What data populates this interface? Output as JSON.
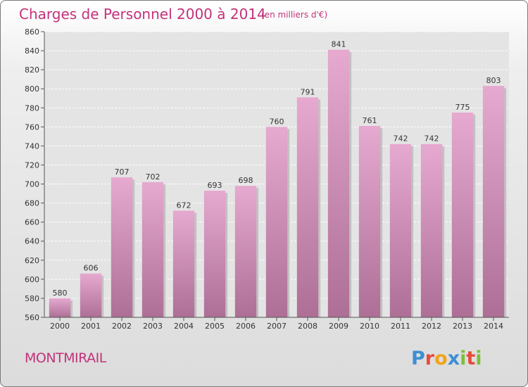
{
  "chart_data": {
    "type": "bar",
    "title": "Charges de Personnel 2000 à 2014",
    "subtitle": "(en milliers d'€)",
    "xlabel": "",
    "ylabel": "",
    "categories": [
      "2000",
      "2001",
      "2002",
      "2003",
      "2004",
      "2005",
      "2006",
      "2007",
      "2008",
      "2009",
      "2010",
      "2011",
      "2012",
      "2013",
      "2014"
    ],
    "values": [
      580,
      606,
      707,
      702,
      672,
      693,
      698,
      760,
      791,
      841,
      761,
      742,
      742,
      775,
      803
    ],
    "ylim": [
      560,
      860
    ],
    "yticks": [
      560,
      580,
      600,
      620,
      640,
      660,
      680,
      700,
      720,
      740,
      760,
      780,
      800,
      820,
      840,
      860
    ],
    "grid": true,
    "legend": "none"
  },
  "footer": {
    "city": "MONTMIRAIL",
    "brand_letters": [
      "P",
      "r",
      "o",
      "x",
      "i",
      "t",
      "i"
    ]
  },
  "colors": {
    "accent": "#c3327a",
    "bar_top": "#e6a9cf",
    "bar_bottom": "#ad6f95",
    "brand_letters": [
      "#3d8fd4",
      "#e84a3a",
      "#f2a31b",
      "#3d8fd4",
      "#7cbf3b",
      "#e84a3a",
      "#7cbf3b"
    ]
  }
}
